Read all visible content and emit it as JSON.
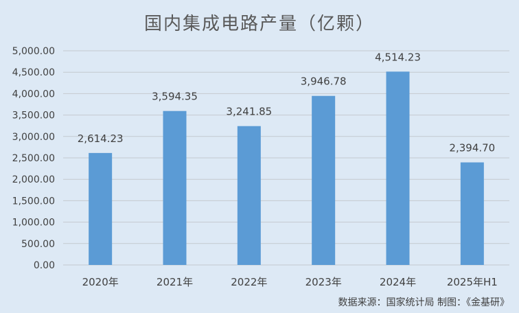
{
  "chart_data": {
    "type": "bar",
    "title": "国内集成电路产量（亿颗）",
    "categories": [
      "2020年",
      "2021年",
      "2022年",
      "2023年",
      "2024年",
      "2025年H1"
    ],
    "values": [
      2614.23,
      3594.35,
      3241.85,
      3946.78,
      4514.23,
      2394.7
    ],
    "data_labels": [
      "2,614.23",
      "3,594.35",
      "3,241.85",
      "3,946.78",
      "4,514.23",
      "2,394.70"
    ],
    "ylim": [
      0,
      5000
    ],
    "yticks": [
      0,
      500,
      1000,
      1500,
      2000,
      2500,
      3000,
      3500,
      4000,
      4500,
      5000
    ],
    "ytick_labels": [
      "0.00",
      "500.00",
      "1,000.00",
      "1,500.00",
      "2,000.00",
      "2,500.00",
      "3,000.00",
      "3,500.00",
      "4,000.00",
      "4,500.00",
      "5,000.00"
    ],
    "grid": true,
    "legend": "none",
    "bar_color": "#5b9bd5",
    "xlabel": "",
    "ylabel": ""
  },
  "footer": "数据来源：国家统计局   制图：《金基研》",
  "colors": {
    "background": "#dde9f5",
    "gridline": "#c4c9cf",
    "text": "#404040"
  }
}
